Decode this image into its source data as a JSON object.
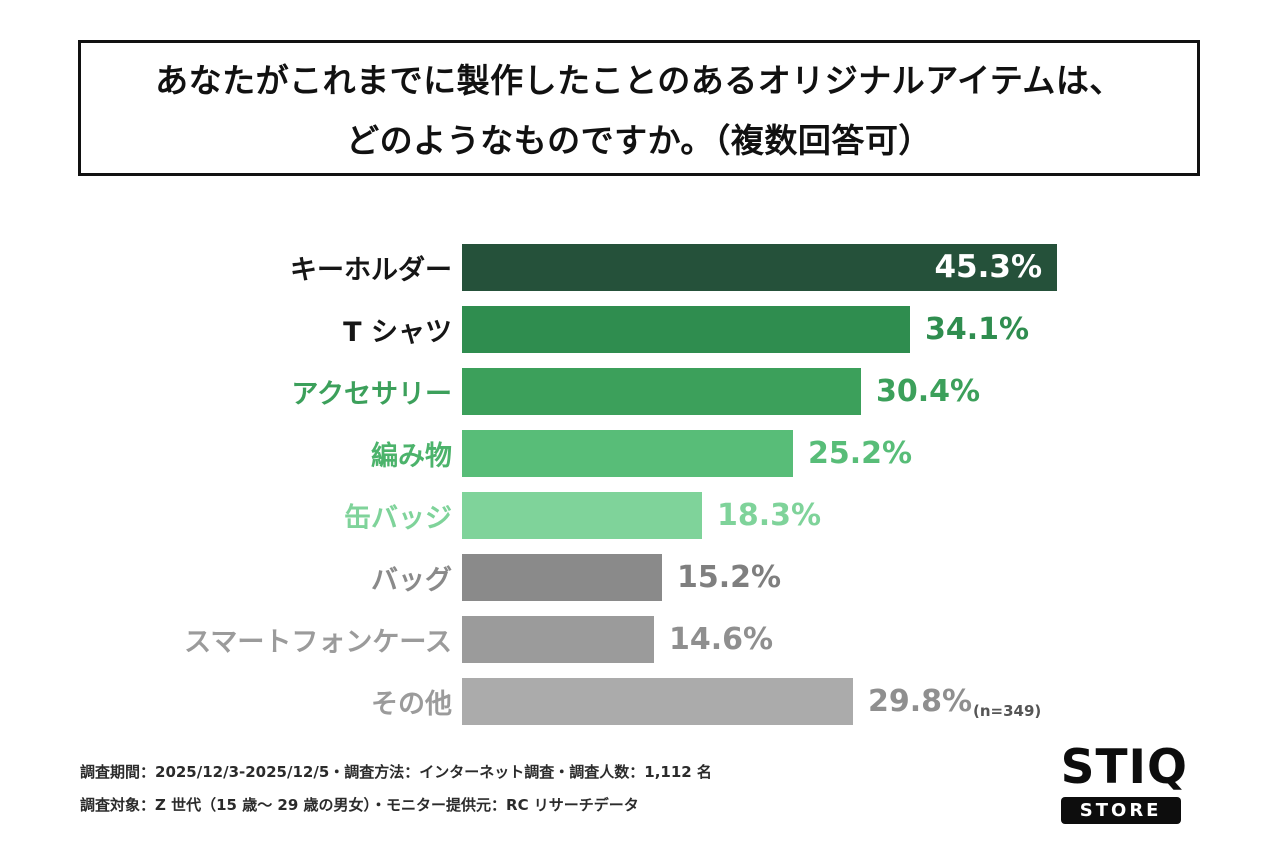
{
  "title": {
    "line1": "あなたがこれまでに製作したことのあるオリジナルアイテムは、",
    "line2": "どのようなものですか。（複数回答可）"
  },
  "chart_data": {
    "type": "bar",
    "orientation": "horizontal",
    "title": "あなたがこれまでに製作したことのあるオリジナルアイテムは、どのようなものですか。（複数回答可）",
    "categories": [
      "キーホルダー",
      "T シャツ",
      "アクセサリー",
      "編み物",
      "缶バッジ",
      "バッグ",
      "スマートフォンケース",
      "その他"
    ],
    "values": [
      45.3,
      34.1,
      30.4,
      25.2,
      18.3,
      15.2,
      14.6,
      29.8
    ],
    "value_labels": [
      "45.3%",
      "34.1%",
      "30.4%",
      "25.2%",
      "18.3%",
      "15.2%",
      "14.6%",
      "29.8%"
    ],
    "xlim": [
      0,
      45.3
    ],
    "grid": false,
    "legend": false,
    "bar_colors": [
      "#25513a",
      "#2f8d4f",
      "#3ca05b",
      "#58bd78",
      "#7fd39a",
      "#8a8a8a",
      "#9b9b9b",
      "#ababab"
    ],
    "label_colors": [
      "#161616",
      "#161616",
      "#3ca05b",
      "#4cb36b",
      "#7fd39a",
      "#8a8a8a",
      "#9b9b9b",
      "#9b9b9b"
    ],
    "value_colors": [
      "#ffffff",
      "#2f8d4f",
      "#3ca05b",
      "#58bd78",
      "#7fd39a",
      "#7f7f7f",
      "#8f8f8f",
      "#8f8f8f"
    ],
    "value_inside": [
      true,
      false,
      false,
      false,
      false,
      false,
      false,
      false
    ],
    "sample_note": "(n=349)"
  },
  "footer": {
    "line1": "調査期間：2025/12/3-2025/12/5・調査方法：インターネット調査・調査人数：1,112 名",
    "line2": "調査対象：Z 世代（15 歳〜 29 歳の男女）・モニター提供元：RC リサーチデータ"
  },
  "logo": {
    "brand": "STIQ",
    "store": "STORE"
  }
}
